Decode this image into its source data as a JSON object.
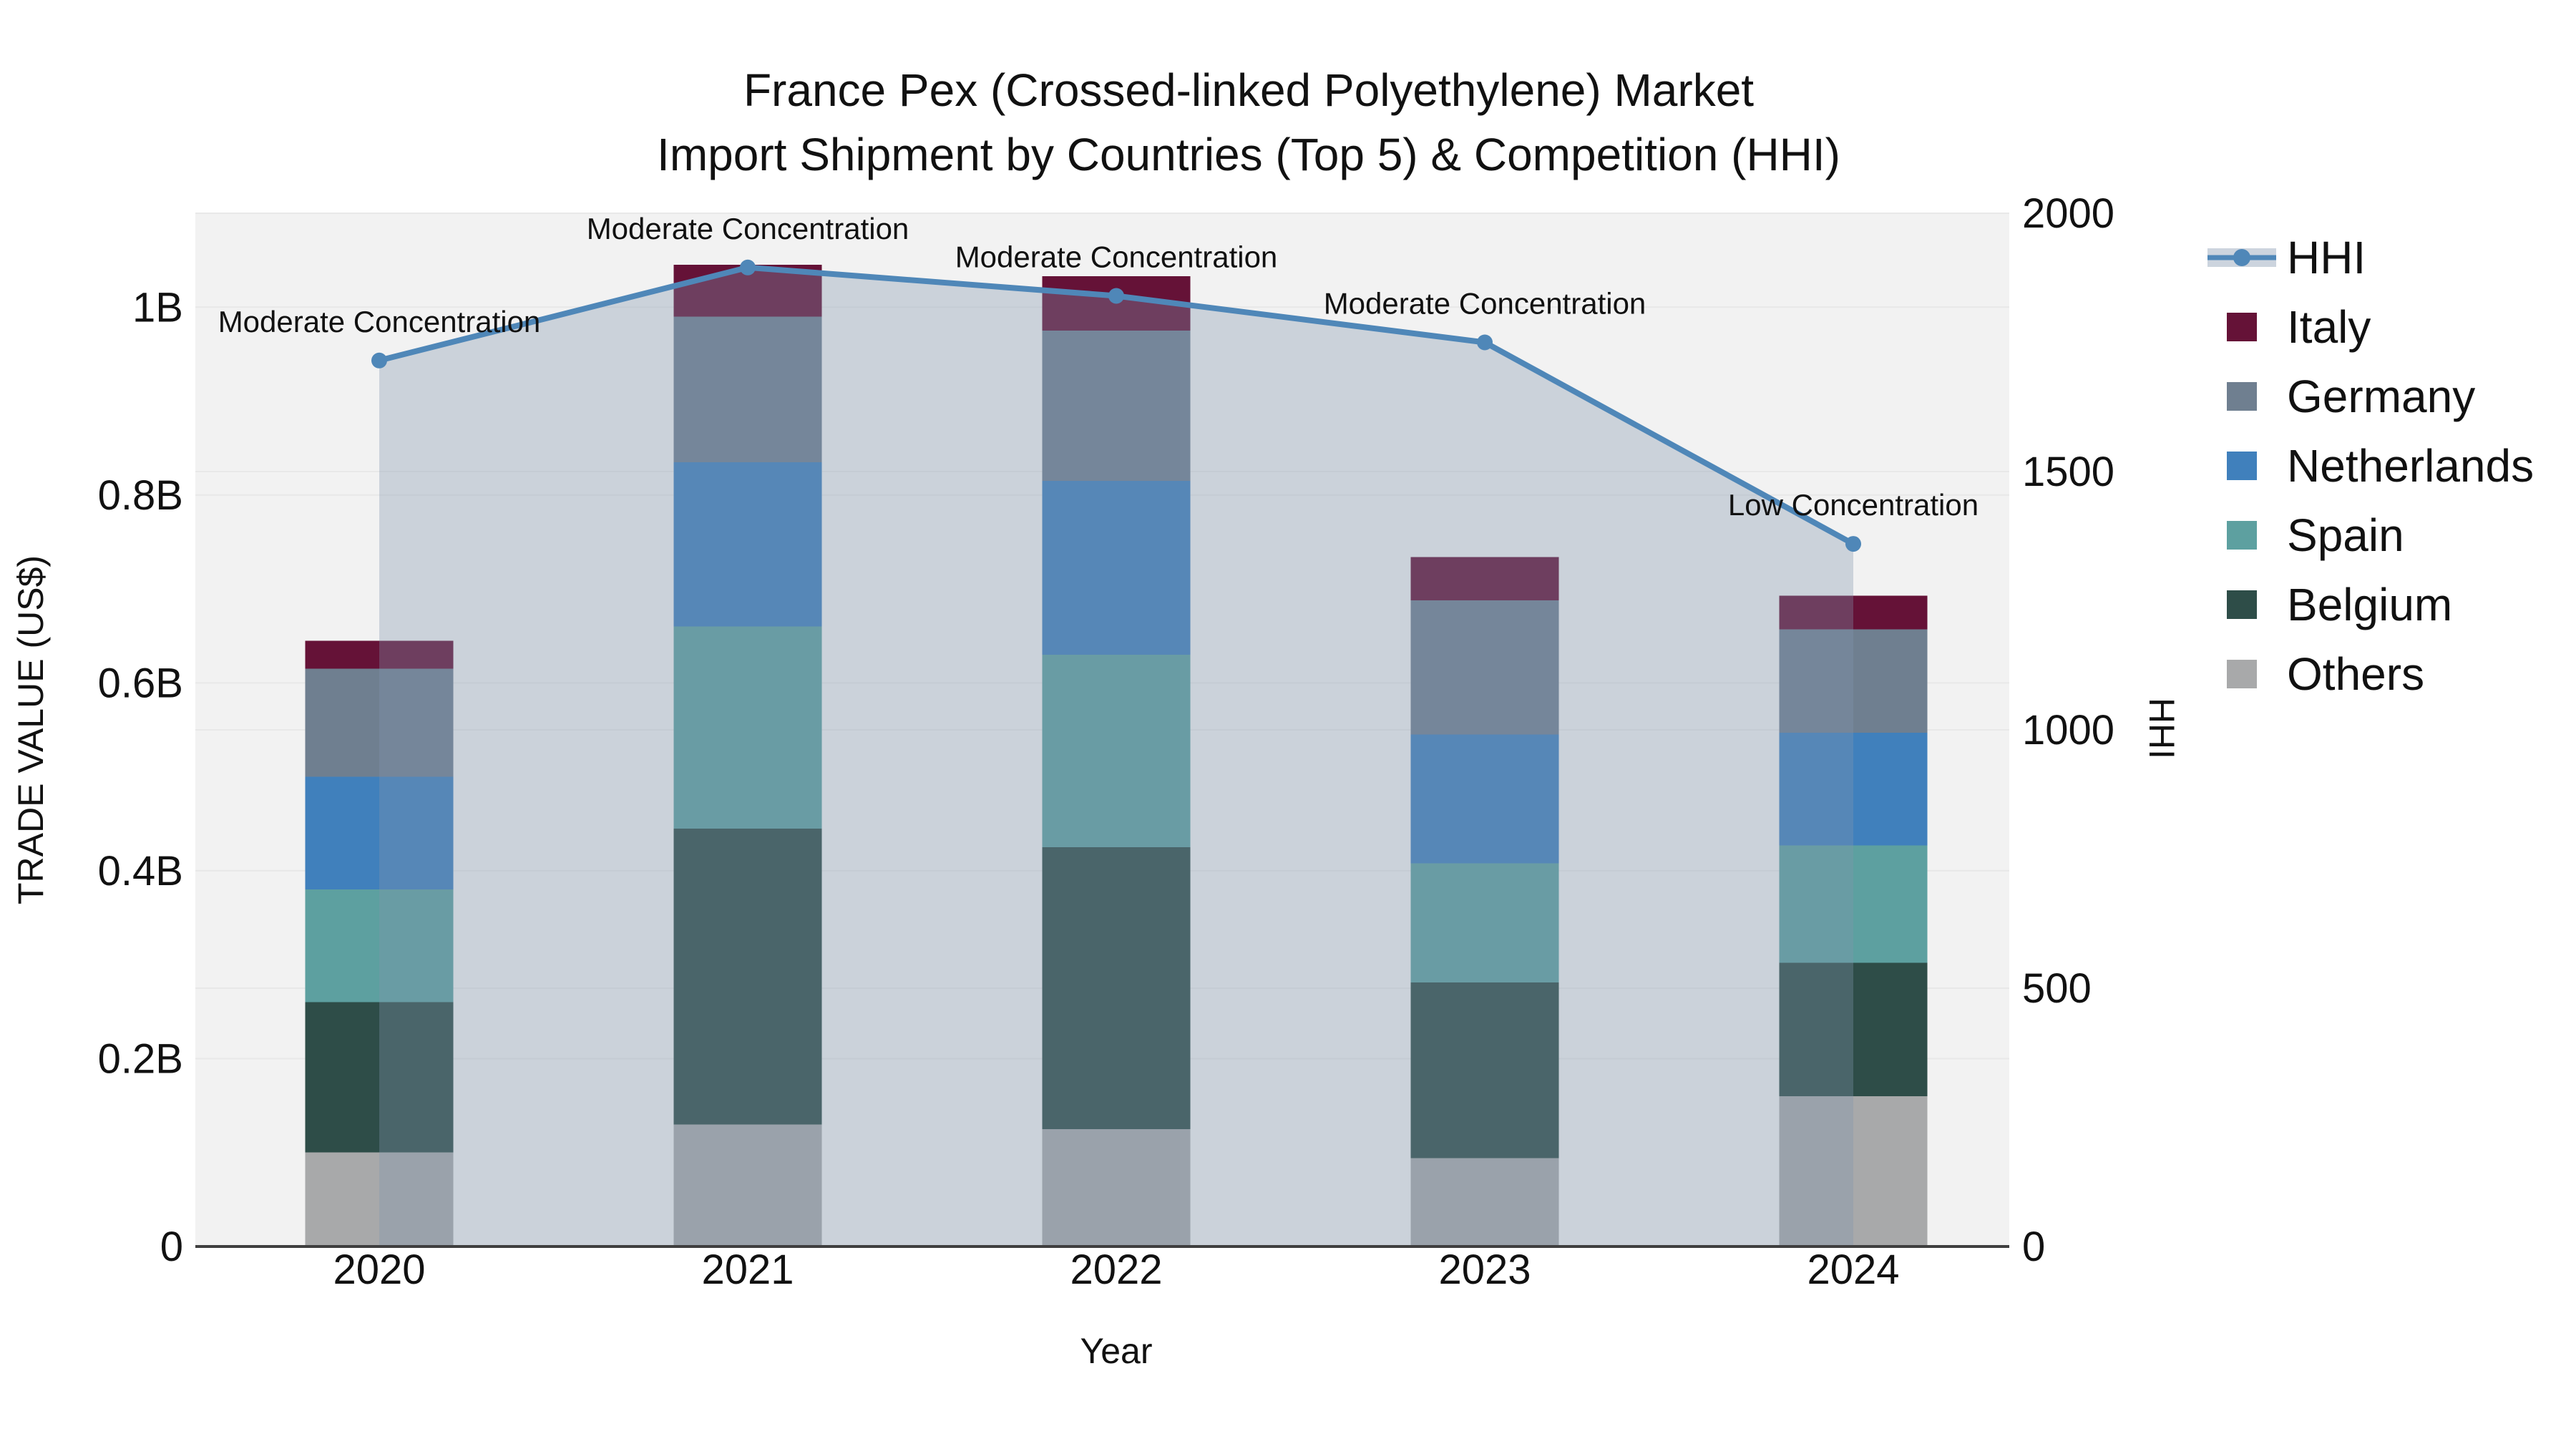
{
  "title": {
    "line1": "France Pex (Crossed-linked Polyethylene) Market",
    "line2": "Import Shipment by Countries (Top 5) & Competition (HHI)"
  },
  "chart_data": {
    "type": "combo_stacked_bar_line",
    "x": [
      2020,
      2021,
      2022,
      2023,
      2024
    ],
    "xlabel": "Year",
    "ylabel": "TRADE VALUE (US$)",
    "y2label": "HHI",
    "ytick_labels": [
      "0",
      "0.2B",
      "0.4B",
      "0.6B",
      "0.8B",
      "1B"
    ],
    "ytick_values_billion": [
      0,
      0.2,
      0.4,
      0.6,
      0.8,
      1.0
    ],
    "ylim_billion": [
      0,
      1.1
    ],
    "y2tick_values": [
      0,
      500,
      1000,
      1500,
      2000
    ],
    "y2lim": [
      0,
      2000
    ],
    "grid": true,
    "legend_position": "right",
    "series": [
      {
        "name": "Others",
        "color": "#a8a9aa",
        "values_billion": [
          0.1,
          0.13,
          0.125,
          0.094,
          0.16
        ]
      },
      {
        "name": "Belgium",
        "color": "#2e4d48",
        "values_billion": [
          0.16,
          0.315,
          0.3,
          0.187,
          0.142
        ]
      },
      {
        "name": "Spain",
        "color": "#5da0a0",
        "values_billion": [
          0.12,
          0.215,
          0.205,
          0.127,
          0.125
        ]
      },
      {
        "name": "Netherlands",
        "color": "#4080bc",
        "values_billion": [
          0.12,
          0.175,
          0.185,
          0.137,
          0.12
        ]
      },
      {
        "name": "Germany",
        "color": "#6f7f90",
        "values_billion": [
          0.115,
          0.155,
          0.16,
          0.143,
          0.11
        ]
      },
      {
        "name": "Italy",
        "color": "#651237",
        "values_billion": [
          0.03,
          0.055,
          0.058,
          0.046,
          0.036
        ]
      }
    ],
    "hhi": {
      "name": "HHI",
      "color": "#4f87b8",
      "area_color": "rgba(130,150,172,0.34)",
      "values": [
        1715,
        1895,
        1840,
        1750,
        1360
      ],
      "annotations": [
        "Moderate Concentration",
        "Moderate Concentration",
        "Moderate Concentration",
        "Moderate Concentration",
        "Low Concentration"
      ]
    },
    "legend_order": [
      "HHI",
      "Italy",
      "Germany",
      "Netherlands",
      "Spain",
      "Belgium",
      "Others"
    ]
  },
  "colors": {
    "plot_bg": "#f2f2f2",
    "grid": "#e8e8e8",
    "axis_line": "#3f3f3f",
    "text": "#111111",
    "legend_hhi_band": "#ccd4de"
  }
}
